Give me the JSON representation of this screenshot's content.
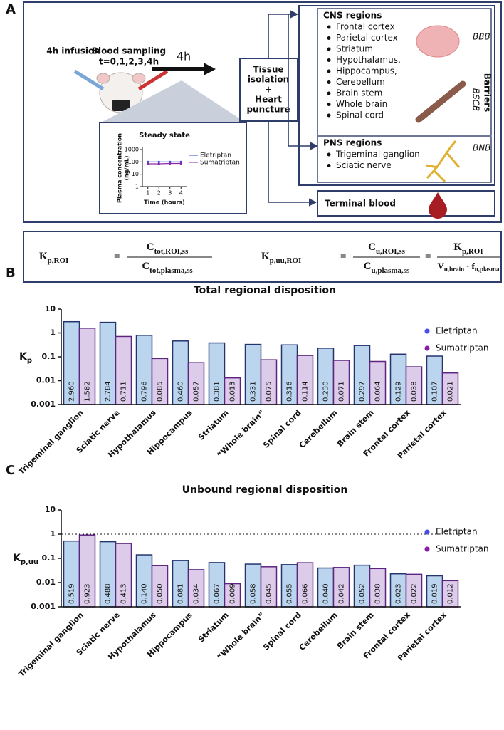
{
  "panel_labels": [
    "A",
    "B",
    "C"
  ],
  "panel_a": {
    "infusion": "4h infusion",
    "sampling": [
      "Blood sampling",
      "t=0,1,2,3,4h"
    ],
    "duration": "4h",
    "tissue": [
      "Tissue",
      "isolation",
      "+",
      "Heart",
      "puncture"
    ],
    "cns": {
      "title": "CNS regions",
      "items": [
        "Frontal cortex",
        "Parietal cortex",
        "Striatum",
        "Hypothalamus,",
        "Hippocampus,",
        "Cerebellum",
        "Brain stem",
        "Whole brain",
        "Spinal cord"
      ]
    },
    "pns": {
      "title": "PNS regions",
      "items": [
        "Trigeminal ganglion",
        "Sciatic nerve"
      ]
    },
    "terminal": "Terminal blood",
    "barriers": {
      "title": "Barriers",
      "items": [
        "BBB",
        "BSCB",
        "BNB"
      ]
    }
  },
  "formulas": [
    {
      "lhs": "K",
      "lhs_sub": "p,ROI",
      "eq": "=",
      "num": "C",
      "num_sub": "tot,ROI,ss",
      "den": "C",
      "den_sub": "tot,plasma,ss"
    },
    {
      "lhs": "K",
      "lhs_sub": "p,uu,ROI",
      "eq": "=",
      "num": "C",
      "num_sub": "u,ROI,ss",
      "den": "C",
      "den_sub": "u,plasma,ss",
      "eq2": "=",
      "num2": "K",
      "num2_sub": "p,ROI",
      "den2a": "V",
      "den2a_sub": "u,brain",
      "dot": "·",
      "den2b": "f",
      "den2b_sub": "u,plasma"
    }
  ],
  "chart_data": [
    {
      "type": "line",
      "title": "Steady state",
      "ylabel": [
        "Plasma concentration",
        "(ng/mL)"
      ],
      "xlabel": "Time (hours)",
      "x": [
        1,
        2,
        3,
        4
      ],
      "xlim": [
        0.5,
        4.5
      ],
      "xticks": [
        1,
        2,
        3,
        4
      ],
      "yscale": "log",
      "ylim": [
        1,
        1000
      ],
      "yticks": [
        1,
        10,
        100,
        1000
      ],
      "legend": "right",
      "series": [
        {
          "name": "Eletriptan",
          "color": "#3a4fd8",
          "values": [
            100,
            100,
            100,
            100
          ]
        },
        {
          "name": "Sumatriptan",
          "color": "#8a2aa8",
          "values": [
            70,
            70,
            75,
            75
          ]
        }
      ]
    },
    {
      "type": "bar",
      "title": "Total regional disposition",
      "ylabel": "K",
      "ylabel_sub": "p",
      "yscale": "log",
      "ylim": [
        0.001,
        10
      ],
      "yticks": [
        0.001,
        0.01,
        0.1,
        1,
        10
      ],
      "legend": "top-right",
      "categories": [
        "Trigeminal ganglion",
        "Sciatic nerve",
        "Hypothalamus",
        "Hippocampus",
        "Striatum",
        "“Whole brain”",
        "Spinal cord",
        "Cerebellum",
        "Brain stem",
        "Frontal cortex",
        "Parietal cortex"
      ],
      "series": [
        {
          "name": "Eletriptan",
          "color": "#4a4af0",
          "fill": "#bcd5ee",
          "stroke": "#24356e",
          "values": [
            2.96,
            2.784,
            0.796,
            0.46,
            0.381,
            0.331,
            0.316,
            0.23,
            0.297,
            0.129,
            0.107
          ],
          "value_labels": [
            "2.960",
            "2.784",
            "0.796",
            "0.460",
            "0.381",
            "0.331",
            "0.316",
            "0.230",
            "0.297",
            "0.129",
            "0.107"
          ]
        },
        {
          "name": "Sumatriptan",
          "color": "#8a1aa8",
          "fill": "#dccbe9",
          "stroke": "#5e2580",
          "values": [
            1.582,
            0.711,
            0.085,
            0.057,
            0.013,
            0.075,
            0.114,
            0.071,
            0.064,
            0.038,
            0.021
          ],
          "value_labels": [
            "1.582",
            "0.711",
            "0.085",
            "0.057",
            "0.013",
            "0.075",
            "0.114",
            "0.071",
            "0.064",
            "0.038",
            "0.021"
          ]
        }
      ]
    },
    {
      "type": "bar",
      "title": "Unbound regional disposition",
      "ylabel": "K",
      "ylabel_sub": "p,uu",
      "yscale": "log",
      "ylim": [
        0.001,
        10
      ],
      "yticks": [
        0.001,
        0.01,
        0.1,
        1,
        10
      ],
      "legend": "top-right",
      "reference_line": 1,
      "categories": [
        "Trigeminal ganglion",
        "Sciatic nerve",
        "Hypothalamus",
        "Hippocampus",
        "Striatum",
        "“Whole brain”",
        "Spinal cord",
        "Cerebellum",
        "Brain stem",
        "Frontal cortex",
        "Parietal cortex"
      ],
      "series": [
        {
          "name": "Eletriptan",
          "color": "#4a4af0",
          "fill": "#bcd5ee",
          "stroke": "#24356e",
          "values": [
            0.519,
            0.488,
            0.14,
            0.081,
            0.067,
            0.058,
            0.055,
            0.04,
            0.052,
            0.023,
            0.019
          ],
          "value_labels": [
            "0.519",
            "0.488",
            "0.140",
            "0.081",
            "0.067",
            "0.058",
            "0.055",
            "0.040",
            "0.052",
            "0.023",
            "0.019"
          ]
        },
        {
          "name": "Sumatriptan",
          "color": "#8a1aa8",
          "fill": "#dccbe9",
          "stroke": "#5e2580",
          "values": [
            0.923,
            0.413,
            0.05,
            0.034,
            0.009,
            0.045,
            0.066,
            0.042,
            0.038,
            0.022,
            0.012
          ],
          "value_labels": [
            "0.923",
            "0.413",
            "0.050",
            "0.034",
            "0.009",
            "0.045",
            "0.066",
            "0.042",
            "0.038",
            "0.022",
            "0.012"
          ]
        }
      ]
    }
  ]
}
